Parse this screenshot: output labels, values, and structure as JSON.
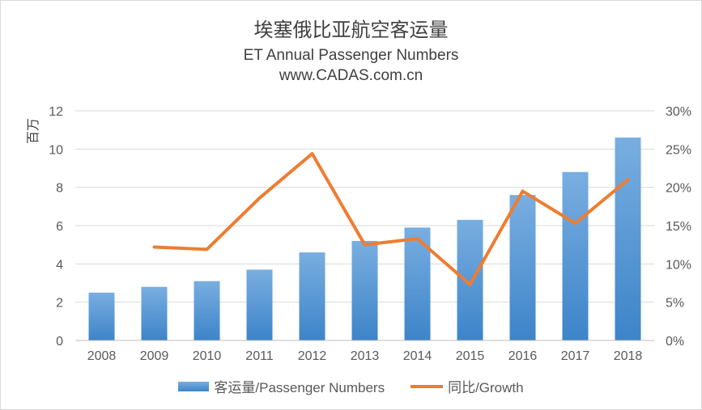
{
  "chart_data": {
    "type": "bar",
    "title": "埃塞俄比亚航空客运量",
    "subtitle": "ET Annual  Passenger Numbers",
    "source": "www.CADAS.com.cn",
    "ylabel": "百万",
    "categories": [
      "2008",
      "2009",
      "2010",
      "2011",
      "2012",
      "2013",
      "2014",
      "2015",
      "2016",
      "2017",
      "2018"
    ],
    "ylim": [
      0,
      12
    ],
    "yticks": [
      "0",
      "2",
      "4",
      "6",
      "8",
      "10",
      "12"
    ],
    "y2lim": [
      0,
      30
    ],
    "y2ticks": [
      "0%",
      "5%",
      "10%",
      "15%",
      "20%",
      "25%",
      "30%"
    ],
    "grid": true,
    "legend_position": "bottom",
    "series": [
      {
        "name": "客运量/Passenger Numbers",
        "type": "bar",
        "axis": "left",
        "color": "#5b9bd5",
        "values": [
          2.5,
          2.8,
          3.1,
          3.7,
          4.6,
          5.2,
          5.9,
          6.3,
          7.6,
          8.8,
          10.6
        ]
      },
      {
        "name": "同比/Growth",
        "type": "line",
        "axis": "right",
        "color": "#ed7d31",
        "values": [
          null,
          12.2,
          11.9,
          18.6,
          24.4,
          12.5,
          13.3,
          7.3,
          19.5,
          15.3,
          21.0
        ]
      }
    ]
  }
}
